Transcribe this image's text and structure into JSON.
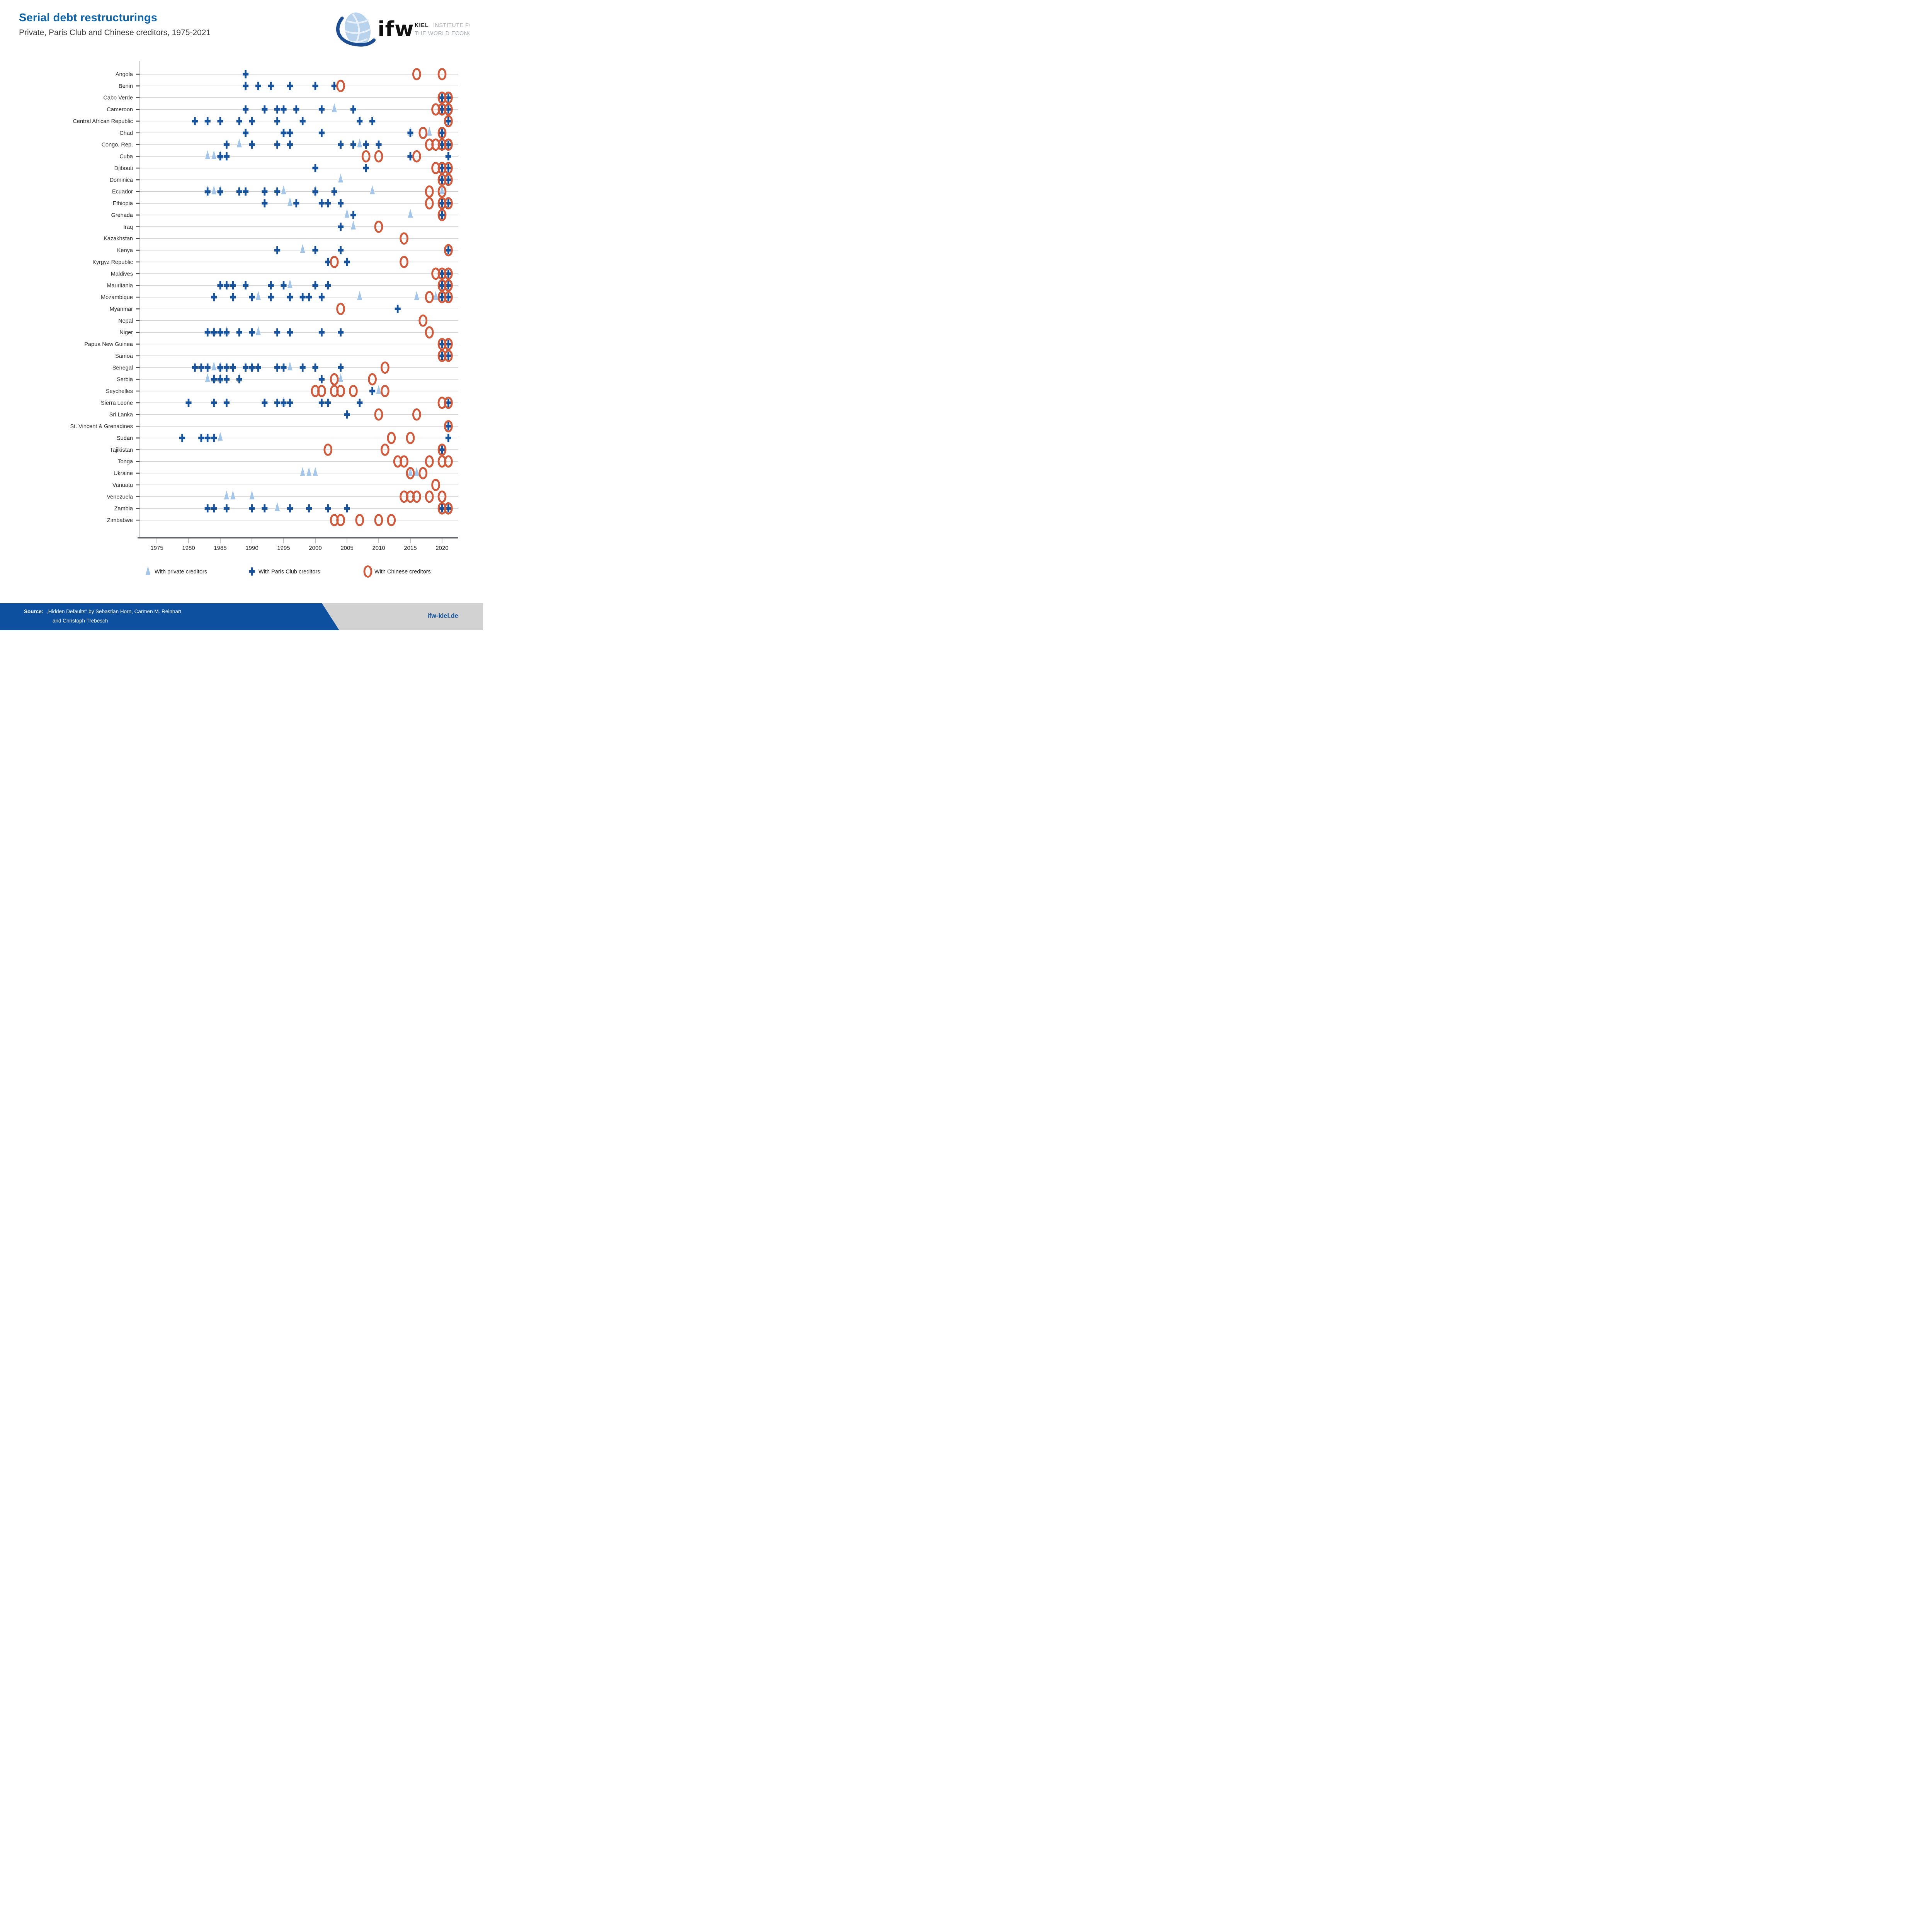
{
  "header": {
    "title": "Serial debt restructurings",
    "subtitle": "Private, Paris Club and Chinese creditors, 1975-2021"
  },
  "logo": {
    "ifw": "ifw",
    "kiel": "KIEL",
    "line1": "INSTITUTE FOR",
    "line2": "THE WORLD ECONOMY"
  },
  "footer": {
    "source_label": "Source:",
    "source_line1": "„Hidden Defaults“ by Sebastian Horn, Carmen M. Reinhart",
    "source_line2": "and Christoph Trebesch",
    "site": "ifw-kiel.de"
  },
  "colors": {
    "private": "#a4c7e9",
    "paris": "#17539d",
    "chinese": "#cf5b3c",
    "title_blue": "#0e63a9",
    "footer_blue": "#0d509f",
    "gridline": "#cbcbcb",
    "axis": "#9b9b9b",
    "axis_bar": "#63666a",
    "label": "#2b2b2b"
  },
  "chart_data": {
    "type": "scatter",
    "title": "Serial debt restructurings",
    "subtitle": "Private, Paris Club and Chinese creditors, 1975-2021",
    "xlabel": "",
    "ylabel": "",
    "x_range": [
      1973,
      2022.5
    ],
    "x_ticks": [
      1975,
      1980,
      1985,
      1990,
      1995,
      2000,
      2005,
      2010,
      2015,
      2020
    ],
    "grid": "horizontal",
    "legend_position": "bottom",
    "legend": [
      {
        "key": "private",
        "label": "With private creditors",
        "marker": "triangle",
        "color": "#a4c7e9"
      },
      {
        "key": "paris",
        "label": "With Paris Club creditors",
        "marker": "plus",
        "color": "#17539d"
      },
      {
        "key": "chinese",
        "label": "With Chinese creditors",
        "marker": "ring",
        "color": "#cf5b3c"
      }
    ],
    "rows": [
      {
        "country": "Angola",
        "private": [],
        "paris": [
          1989
        ],
        "chinese": [
          2016,
          2020
        ]
      },
      {
        "country": "Benin",
        "private": [],
        "paris": [
          1989,
          1991,
          1993,
          1996,
          2000,
          2003
        ],
        "chinese": [
          2004
        ]
      },
      {
        "country": "Cabo Verde",
        "private": [],
        "paris": [
          2020,
          2021
        ],
        "chinese": [
          2020,
          2021
        ]
      },
      {
        "country": "Cameroon",
        "private": [
          2003
        ],
        "paris": [
          1989,
          1992,
          1994,
          1995,
          1997,
          2001,
          2006,
          2020,
          2021
        ],
        "chinese": [
          2019,
          2020,
          2021
        ]
      },
      {
        "country": "Central African Republic",
        "private": [],
        "paris": [
          1981,
          1983,
          1985,
          1988,
          1990,
          1994,
          1998,
          2007,
          2009,
          2021
        ],
        "chinese": [
          2021
        ]
      },
      {
        "country": "Chad",
        "private": [
          2015,
          2018
        ],
        "paris": [
          1989,
          1995,
          1996,
          2001,
          2015,
          2020
        ],
        "chinese": [
          2017,
          2020
        ]
      },
      {
        "country": "Congo, Rep.",
        "private": [
          1988,
          2007,
          2021
        ],
        "paris": [
          1986,
          1990,
          1994,
          1996,
          2004,
          2006,
          2008,
          2010,
          2020,
          2021
        ],
        "chinese": [
          2018,
          2019,
          2020,
          2021
        ]
      },
      {
        "country": "Cuba",
        "private": [
          1983,
          1984,
          1985
        ],
        "paris": [
          1985,
          1986,
          2015,
          2021
        ],
        "chinese": [
          2008,
          2010,
          2016
        ]
      },
      {
        "country": "Djibouti",
        "private": [],
        "paris": [
          2000,
          2008,
          2020,
          2021
        ],
        "chinese": [
          2019,
          2020,
          2021
        ]
      },
      {
        "country": "Dominica",
        "private": [
          2004
        ],
        "paris": [
          2020,
          2021
        ],
        "chinese": [
          2020,
          2021
        ]
      },
      {
        "country": "Ecuador",
        "private": [
          1983,
          1984,
          1985,
          1995,
          2000,
          2009,
          2020
        ],
        "paris": [
          1983,
          1985,
          1988,
          1989,
          1992,
          1994,
          2000,
          2003
        ],
        "chinese": [
          2018,
          2020
        ]
      },
      {
        "country": "Ethiopia",
        "private": [
          1996
        ],
        "paris": [
          1992,
          1997,
          2001,
          2002,
          2004,
          2020,
          2021
        ],
        "chinese": [
          2018,
          2020,
          2021
        ]
      },
      {
        "country": "Grenada",
        "private": [
          2005,
          2015
        ],
        "paris": [
          2006,
          2020
        ],
        "chinese": [
          2020
        ]
      },
      {
        "country": "Iraq",
        "private": [
          2006
        ],
        "paris": [
          2004
        ],
        "chinese": [
          2010
        ]
      },
      {
        "country": "Kazakhstan",
        "private": [],
        "paris": [],
        "chinese": [
          2014
        ]
      },
      {
        "country": "Kenya",
        "private": [
          1998
        ],
        "paris": [
          1994,
          2000,
          2004,
          2021
        ],
        "chinese": [
          2021
        ]
      },
      {
        "country": "Kyrgyz Republic",
        "private": [],
        "paris": [
          2002,
          2005
        ],
        "chinese": [
          2003,
          2014
        ]
      },
      {
        "country": "Maldives",
        "private": [],
        "paris": [
          2020,
          2021
        ],
        "chinese": [
          2019,
          2020,
          2021
        ]
      },
      {
        "country": "Mauritania",
        "private": [
          1996
        ],
        "paris": [
          1985,
          1986,
          1987,
          1989,
          1993,
          1995,
          2000,
          2002,
          2020,
          2021
        ],
        "chinese": [
          2020,
          2021
        ]
      },
      {
        "country": "Mozambique",
        "private": [
          1991,
          2007,
          2016,
          2019
        ],
        "paris": [
          1984,
          1987,
          1990,
          1993,
          1996,
          1998,
          1999,
          2001,
          2020,
          2021
        ],
        "chinese": [
          2018,
          2020,
          2021
        ]
      },
      {
        "country": "Myanmar",
        "private": [],
        "paris": [
          2013
        ],
        "chinese": [
          2004
        ]
      },
      {
        "country": "Nepal",
        "private": [],
        "paris": [],
        "chinese": [
          2017
        ]
      },
      {
        "country": "Niger",
        "private": [
          1984,
          1986,
          1991
        ],
        "paris": [
          1983,
          1984,
          1985,
          1986,
          1988,
          1990,
          1994,
          1996,
          2001,
          2004
        ],
        "chinese": [
          2018
        ]
      },
      {
        "country": "Papua New Guinea",
        "private": [],
        "paris": [
          2020,
          2021
        ],
        "chinese": [
          2020,
          2021
        ]
      },
      {
        "country": "Samoa",
        "private": [],
        "paris": [
          2020,
          2021
        ],
        "chinese": [
          2020,
          2021
        ]
      },
      {
        "country": "Senegal",
        "private": [
          1984,
          1985,
          1990,
          1996
        ],
        "paris": [
          1981,
          1982,
          1983,
          1985,
          1986,
          1987,
          1989,
          1990,
          1991,
          1994,
          1995,
          1998,
          2000,
          2004
        ],
        "chinese": [
          2011
        ]
      },
      {
        "country": "Serbia",
        "private": [
          1983,
          1984,
          1985,
          1988,
          2004
        ],
        "paris": [
          1984,
          1985,
          1986,
          1988,
          2001
        ],
        "chinese": [
          2003,
          2009
        ]
      },
      {
        "country": "Seychelles",
        "private": [
          2010
        ],
        "paris": [
          2009
        ],
        "chinese": [
          2000,
          2001,
          2003,
          2004,
          2006,
          2011
        ]
      },
      {
        "country": "Sierra Leone",
        "private": [
          1995
        ],
        "paris": [
          1980,
          1984,
          1986,
          1992,
          1994,
          1995,
          1996,
          2001,
          2002,
          2007,
          2021
        ],
        "chinese": [
          2020,
          2021
        ]
      },
      {
        "country": "Sri Lanka",
        "private": [],
        "paris": [
          2005
        ],
        "chinese": [
          2010,
          2016
        ]
      },
      {
        "country": "St. Vincent & Grenadines",
        "private": [],
        "paris": [
          2021
        ],
        "chinese": [
          2021
        ]
      },
      {
        "country": "Sudan",
        "private": [
          1985
        ],
        "paris": [
          1979,
          1982,
          1983,
          1984,
          2021
        ],
        "chinese": [
          2012,
          2015
        ]
      },
      {
        "country": "Tajikistan",
        "private": [],
        "paris": [
          2020
        ],
        "chinese": [
          2002,
          2011,
          2020
        ]
      },
      {
        "country": "Tonga",
        "private": [],
        "paris": [],
        "chinese": [
          2013,
          2014,
          2018,
          2020,
          2021
        ]
      },
      {
        "country": "Ukraine",
        "private": [
          1998,
          1999,
          2000,
          2015,
          2016
        ],
        "paris": [],
        "chinese": [
          2015,
          2017
        ]
      },
      {
        "country": "Vanuatu",
        "private": [],
        "paris": [],
        "chinese": [
          2019
        ]
      },
      {
        "country": "Venezuela",
        "private": [
          1986,
          1987,
          1990
        ],
        "paris": [],
        "chinese": [
          2014,
          2015,
          2016,
          2018,
          2020
        ]
      },
      {
        "country": "Zambia",
        "private": [
          1994
        ],
        "paris": [
          1983,
          1984,
          1986,
          1990,
          1992,
          1996,
          1999,
          2002,
          2005,
          2020,
          2021
        ],
        "chinese": [
          2020,
          2021
        ]
      },
      {
        "country": "Zimbabwe",
        "private": [],
        "paris": [],
        "chinese": [
          2003,
          2004,
          2007,
          2010,
          2012
        ]
      }
    ]
  }
}
